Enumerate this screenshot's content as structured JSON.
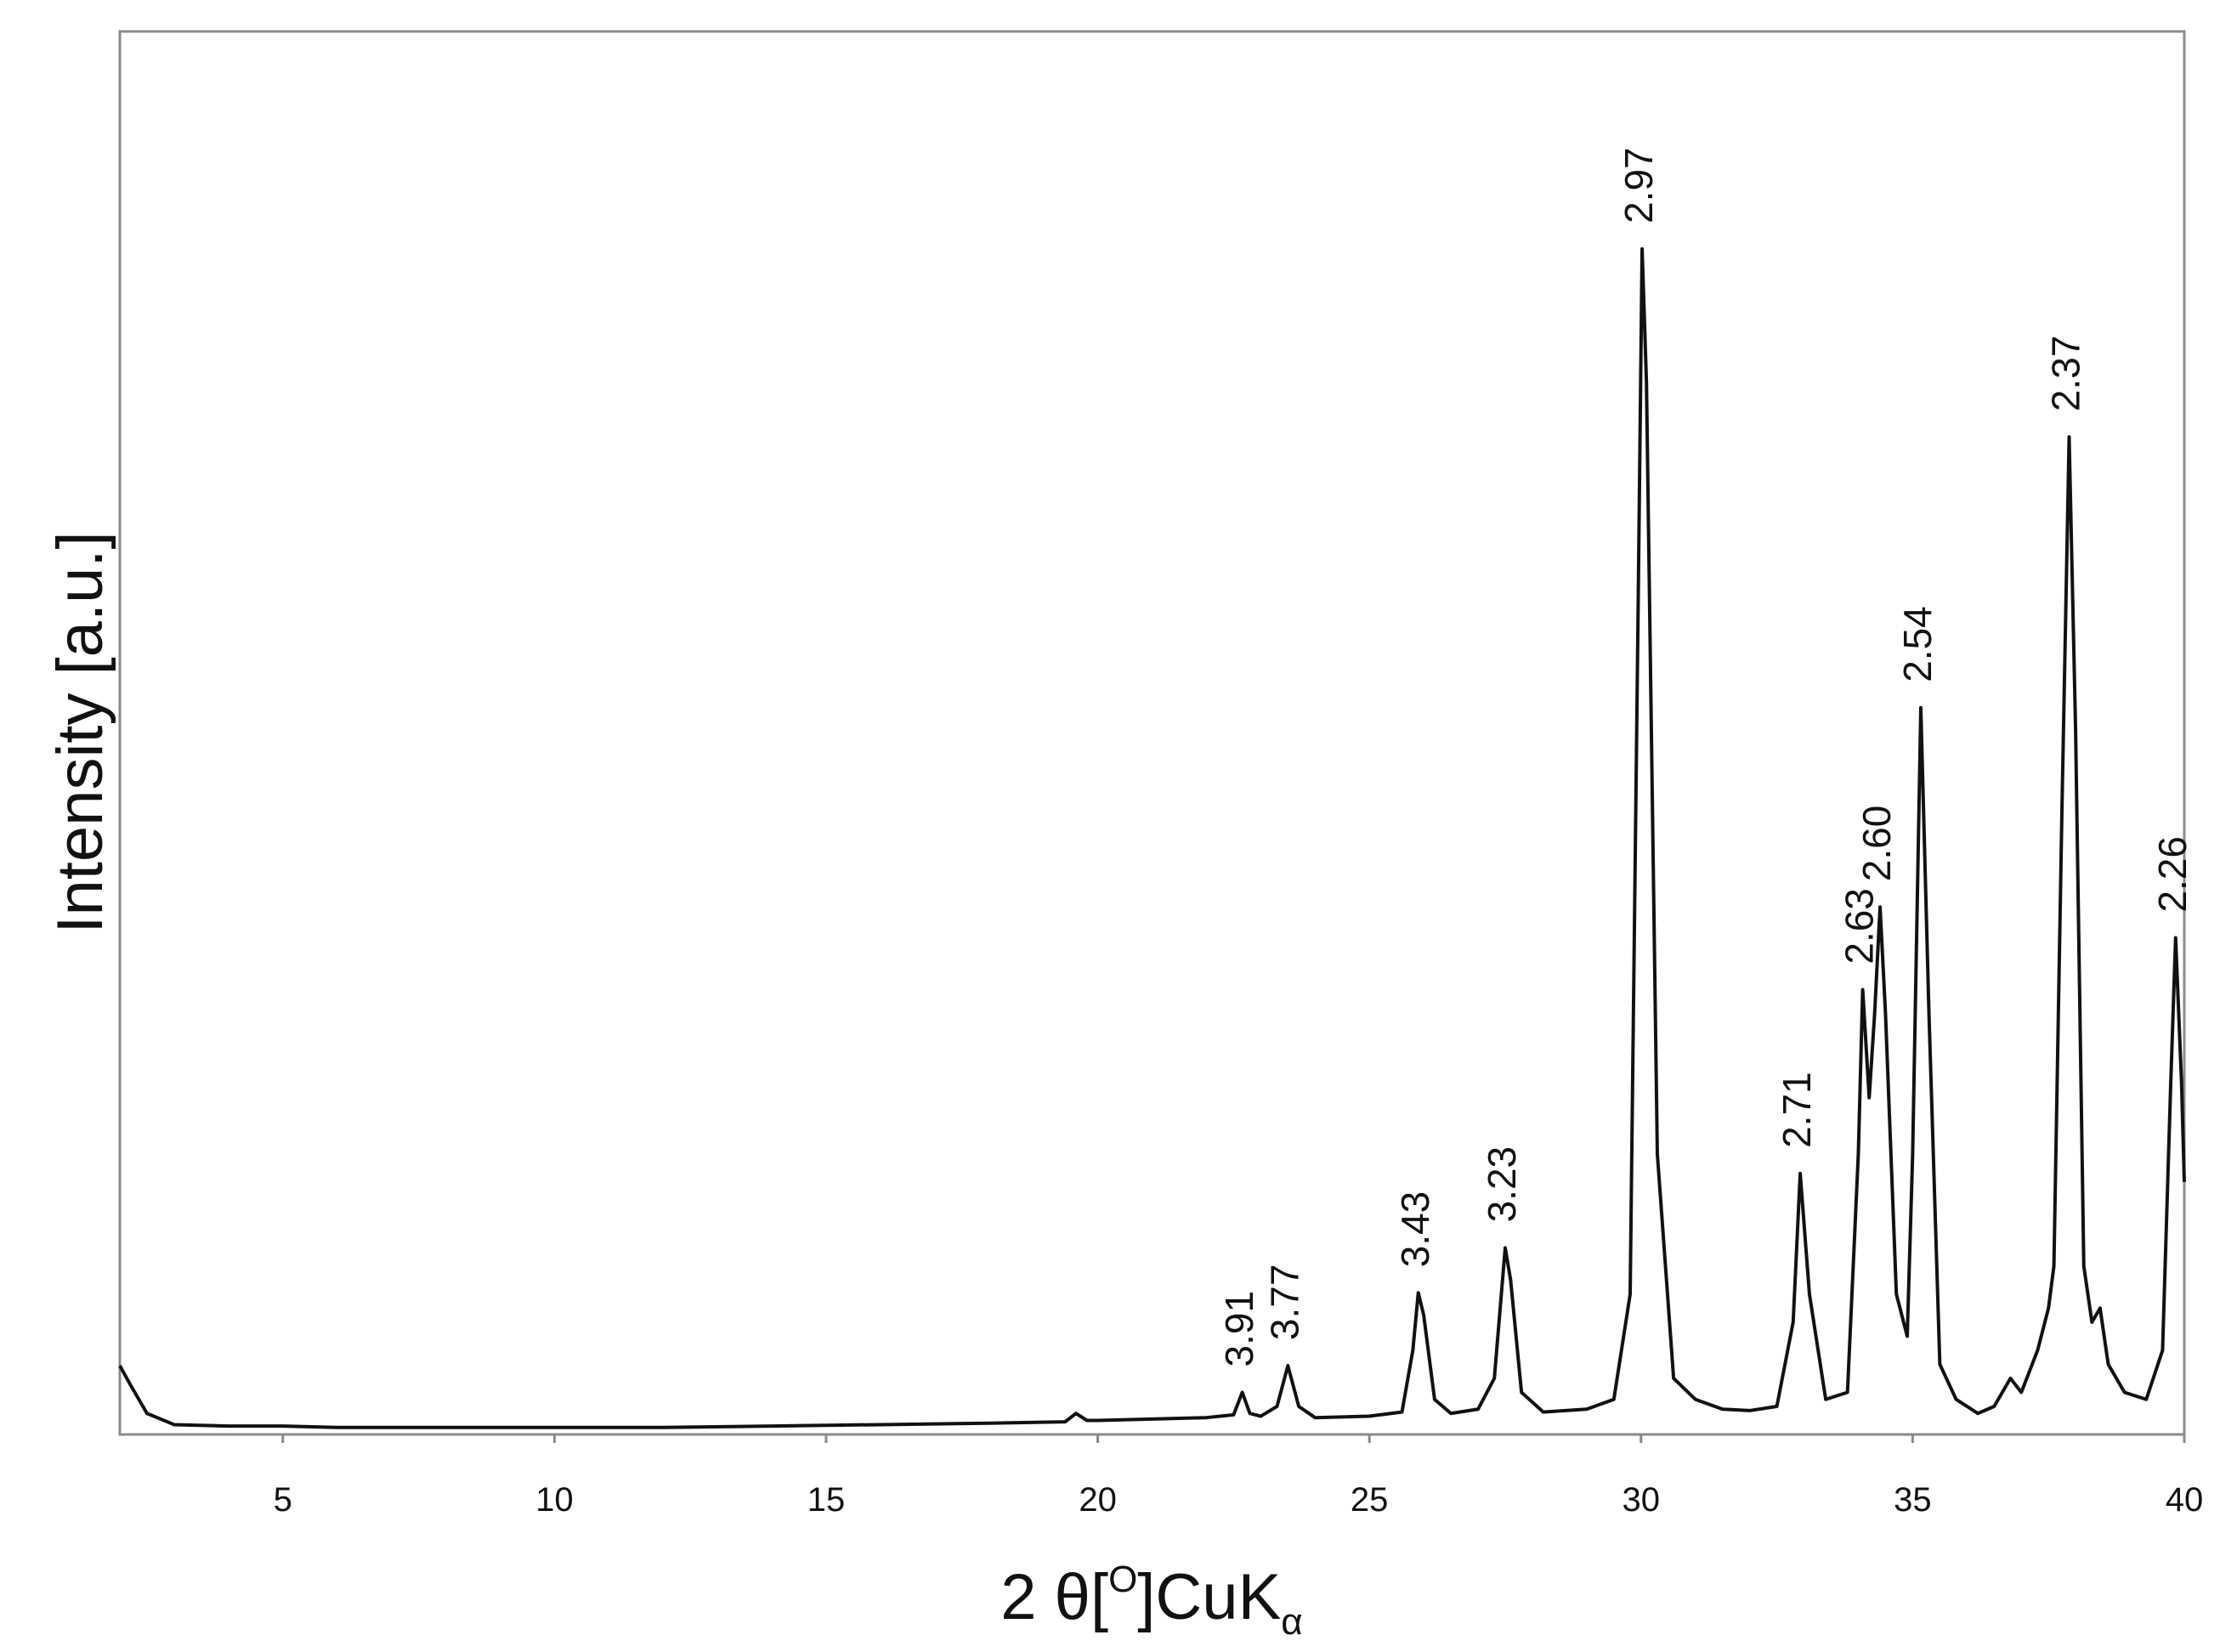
{
  "chart_data": {
    "type": "line",
    "x_label": [
      "2 θ[",
      "O",
      "]CuK",
      "α"
    ],
    "y_label": "Intensity [a.u.]",
    "xlim": [
      2,
      40
    ],
    "xticks": [
      5,
      10,
      15,
      20,
      25,
      30,
      35,
      40
    ],
    "ylim": [
      0,
      100
    ],
    "grid": false,
    "series": [
      {
        "color": "#111111",
        "x": [
          2,
          2.2,
          2.5,
          3,
          4,
          5,
          6,
          8,
          10,
          12,
          14,
          16,
          18,
          19.4,
          19.6,
          19.8,
          20,
          21,
          22,
          22.5,
          22.66,
          22.8,
          23.0,
          23.3,
          23.5,
          23.7,
          24,
          25,
          25.6,
          25.8,
          25.9,
          26.0,
          26.2,
          26.5,
          27,
          27.3,
          27.5,
          27.6,
          27.8,
          28.2,
          29,
          29.5,
          29.8,
          29.95,
          30.02,
          30.1,
          30.3,
          30.6,
          31,
          31.5,
          32,
          32.5,
          32.8,
          32.93,
          33.1,
          33.4,
          33.8,
          34.0,
          34.08,
          34.2,
          34.3,
          34.4,
          34.5,
          34.7,
          34.9,
          35.0,
          35.15,
          35.3,
          35.5,
          35.8,
          36.2,
          36.5,
          36.8,
          37.0,
          37.3,
          37.5,
          37.6,
          37.75,
          37.88,
          38.0,
          38.15,
          38.3,
          38.45,
          38.6,
          38.9,
          39.3,
          39.6,
          39.75,
          39.84,
          39.95,
          40
        ],
        "values": [
          4.9,
          3.5,
          1.5,
          0.7,
          0.6,
          0.6,
          0.5,
          0.5,
          0.5,
          0.5,
          0.6,
          0.7,
          0.8,
          0.9,
          1.5,
          1.0,
          1.0,
          1.1,
          1.2,
          1.4,
          3.0,
          1.5,
          1.3,
          2.0,
          4.9,
          2.0,
          1.2,
          1.3,
          1.6,
          6,
          10.1,
          8.5,
          2.5,
          1.5,
          1.8,
          4,
          13.3,
          11,
          3,
          1.6,
          1.8,
          2.5,
          10,
          60,
          84.5,
          75,
          20,
          4,
          2.5,
          1.8,
          1.7,
          2.0,
          8,
          18.6,
          10,
          2.5,
          3,
          20,
          31.7,
          24,
          30,
          37.6,
          30,
          10,
          7,
          20,
          51.8,
          30,
          5,
          2.5,
          1.5,
          2.0,
          4.0,
          3.0,
          6,
          9,
          12,
          45,
          71.1,
          50,
          12,
          8,
          9,
          5,
          3,
          2.5,
          6,
          25,
          35.4,
          25,
          18
        ]
      }
    ],
    "annotations": [
      {
        "text": "3.91",
        "x": 22.66,
        "y": 3.0
      },
      {
        "text": "3.77",
        "x": 23.5,
        "y": 4.9
      },
      {
        "text": "3.43",
        "x": 25.9,
        "y": 10.1
      },
      {
        "text": "3.23",
        "x": 27.5,
        "y": 13.3
      },
      {
        "text": "2.97",
        "x": 30.02,
        "y": 84.5
      },
      {
        "text": "2.71",
        "x": 32.93,
        "y": 18.6
      },
      {
        "text": "2.63",
        "x": 34.08,
        "y": 31.7
      },
      {
        "text": "2.60",
        "x": 34.4,
        "y": 37.6
      },
      {
        "text": "2.54",
        "x": 35.15,
        "y": 51.8
      },
      {
        "text": "2.37",
        "x": 37.88,
        "y": 71.1
      },
      {
        "text": "2.26",
        "x": 39.84,
        "y": 35.4
      }
    ]
  }
}
